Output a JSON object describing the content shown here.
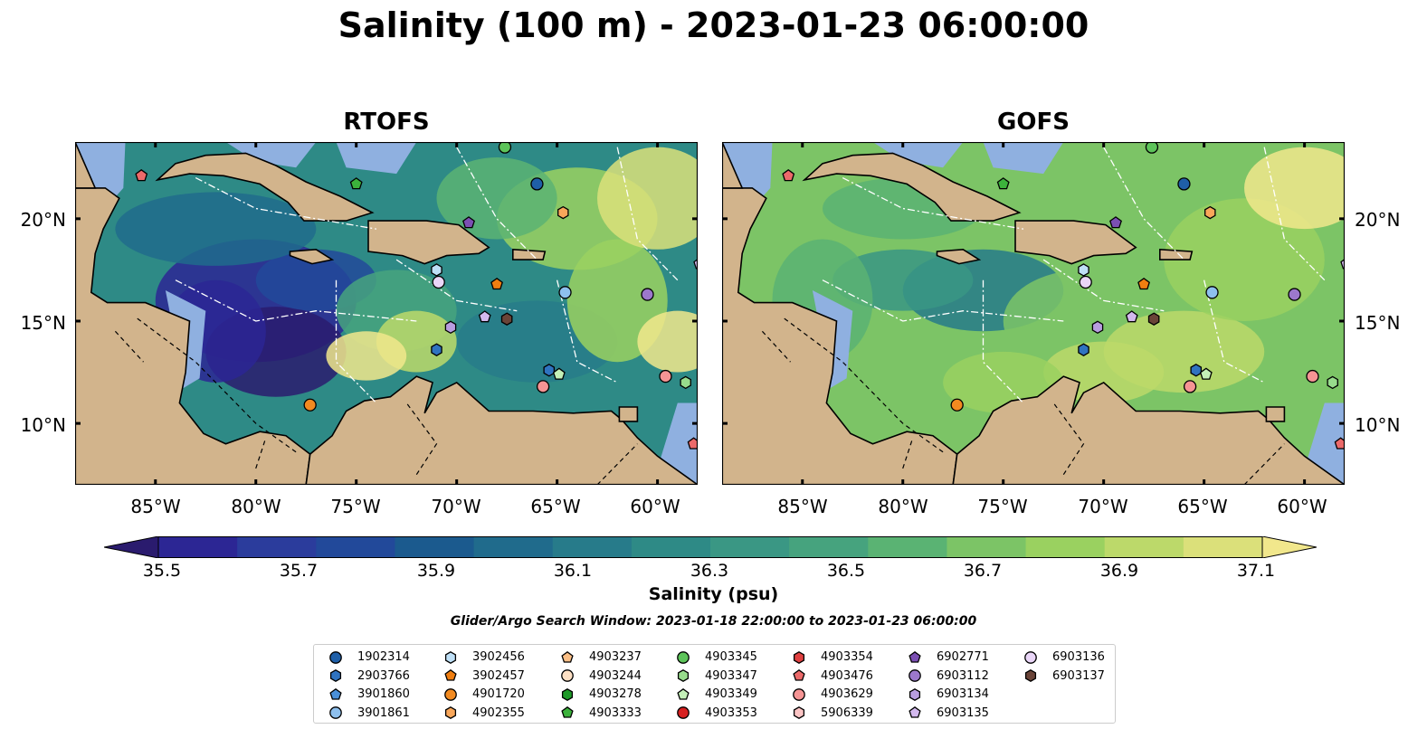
{
  "title": "Salinity (100 m) - 2023-01-23 06:00:00",
  "panels": [
    {
      "title": "RTOFS",
      "theme": "rtofs"
    },
    {
      "title": "GOFS",
      "theme": "gofs"
    }
  ],
  "axes": {
    "lat_labels": [
      "20°N",
      "15°N",
      "10°N"
    ],
    "lon_labels": [
      "85°W",
      "80°W",
      "75°W",
      "70°W",
      "65°W",
      "60°W"
    ]
  },
  "colorbar": {
    "label": "Salinity (psu)",
    "ticks": [
      "35.5",
      "35.7",
      "35.9",
      "36.1",
      "36.3",
      "36.5",
      "36.7",
      "36.9",
      "37.1"
    ],
    "colors": [
      "#2a1b6e",
      "#2c2694",
      "#2b3c9c",
      "#22499a",
      "#1b5a8e",
      "#206b8c",
      "#277b8a",
      "#2e8a86",
      "#3a9784",
      "#46a37e",
      "#5ab373",
      "#7cc466",
      "#9ad160",
      "#bcd96a",
      "#dbe07a",
      "#f1e78c"
    ],
    "min": 35.4,
    "max": 37.2
  },
  "search_window": "Glider/Argo Search Window: 2023-01-18 22:00:00 to 2023-01-23 06:00:00",
  "map_colors": {
    "land": "#d2b48c",
    "shelf": "#8fb0e0",
    "deep": "#241a6a"
  },
  "legend": [
    {
      "id": "1902314",
      "shape": "circle",
      "color": "#1f5fa8"
    },
    {
      "id": "2903766",
      "shape": "hexagon",
      "color": "#2f73c0"
    },
    {
      "id": "3901860",
      "shape": "pentagon",
      "color": "#4a90d9"
    },
    {
      "id": "3901861",
      "shape": "circle",
      "color": "#8ec0ee"
    },
    {
      "id": "3902456",
      "shape": "hexagon",
      "color": "#bfe0f7"
    },
    {
      "id": "3902457",
      "shape": "pentagon",
      "color": "#f07e10"
    },
    {
      "id": "4901720",
      "shape": "circle",
      "color": "#f28a20"
    },
    {
      "id": "4902355",
      "shape": "hexagon",
      "color": "#f9a75a"
    },
    {
      "id": "4903237",
      "shape": "pentagon",
      "color": "#fbbf86"
    },
    {
      "id": "4903244",
      "shape": "circle",
      "color": "#fde0c4"
    },
    {
      "id": "4903278",
      "shape": "hexagon",
      "color": "#1e9a28"
    },
    {
      "id": "4903333",
      "shape": "pentagon",
      "color": "#3cb23c"
    },
    {
      "id": "4903345",
      "shape": "circle",
      "color": "#5dc45a"
    },
    {
      "id": "4903347",
      "shape": "hexagon",
      "color": "#98dc8c"
    },
    {
      "id": "4903349",
      "shape": "pentagon",
      "color": "#c4f0b8"
    },
    {
      "id": "4903353",
      "shape": "circle",
      "color": "#d62020"
    },
    {
      "id": "4903354",
      "shape": "hexagon",
      "color": "#e04040"
    },
    {
      "id": "4903476",
      "shape": "pentagon",
      "color": "#ec6a6a"
    },
    {
      "id": "4903629",
      "shape": "circle",
      "color": "#f59494"
    },
    {
      "id": "5906339",
      "shape": "hexagon",
      "color": "#fbc4c4"
    },
    {
      "id": "6902771",
      "shape": "pentagon",
      "color": "#7b4fb3"
    },
    {
      "id": "6903112",
      "shape": "circle",
      "color": "#9c78cc"
    },
    {
      "id": "6903134",
      "shape": "hexagon",
      "color": "#b89ddf"
    },
    {
      "id": "6903135",
      "shape": "pentagon",
      "color": "#d3b9ee"
    },
    {
      "id": "6903136",
      "shape": "circle",
      "color": "#ead6f8"
    },
    {
      "id": "6903137",
      "shape": "hexagon",
      "color": "#6a4438"
    }
  ],
  "floats_on_map": [
    {
      "id": "4903476",
      "lon": -85.7,
      "lat": 22.1
    },
    {
      "id": "4903345",
      "lon": -67.6,
      "lat": 23.5
    },
    {
      "id": "4903333",
      "lon": -75.0,
      "lat": 21.7
    },
    {
      "id": "1902314",
      "lon": -66.0,
      "lat": 21.7
    },
    {
      "id": "4902355",
      "lon": -64.7,
      "lat": 20.3
    },
    {
      "id": "6902771",
      "lon": -69.4,
      "lat": 19.8
    },
    {
      "id": "6903135",
      "lon": -57.9,
      "lat": 17.8
    },
    {
      "id": "3902456",
      "lon": -71.0,
      "lat": 17.5
    },
    {
      "id": "6903136",
      "lon": -70.9,
      "lat": 16.9
    },
    {
      "id": "3902457",
      "lon": -68.0,
      "lat": 16.8
    },
    {
      "id": "3901861",
      "lon": -64.6,
      "lat": 16.4
    },
    {
      "id": "6903112",
      "lon": -60.5,
      "lat": 16.3
    },
    {
      "id": "6903134",
      "lon": -70.3,
      "lat": 14.7
    },
    {
      "id": "6903135",
      "lon": -68.6,
      "lat": 15.2
    },
    {
      "id": "6903137",
      "lon": -67.5,
      "lat": 15.1
    },
    {
      "id": "2903766",
      "lon": -71.0,
      "lat": 13.6
    },
    {
      "id": "4901720",
      "lon": -77.3,
      "lat": 10.9
    },
    {
      "id": "2903766",
      "lon": -65.4,
      "lat": 12.6
    },
    {
      "id": "4903349",
      "lon": -64.9,
      "lat": 12.4
    },
    {
      "id": "4903629",
      "lon": -65.7,
      "lat": 11.8
    },
    {
      "id": "4903629",
      "lon": -59.6,
      "lat": 12.3
    },
    {
      "id": "4903347",
      "lon": -58.6,
      "lat": 12.0
    },
    {
      "id": "4903476",
      "lon": -58.2,
      "lat": 9.0
    }
  ]
}
